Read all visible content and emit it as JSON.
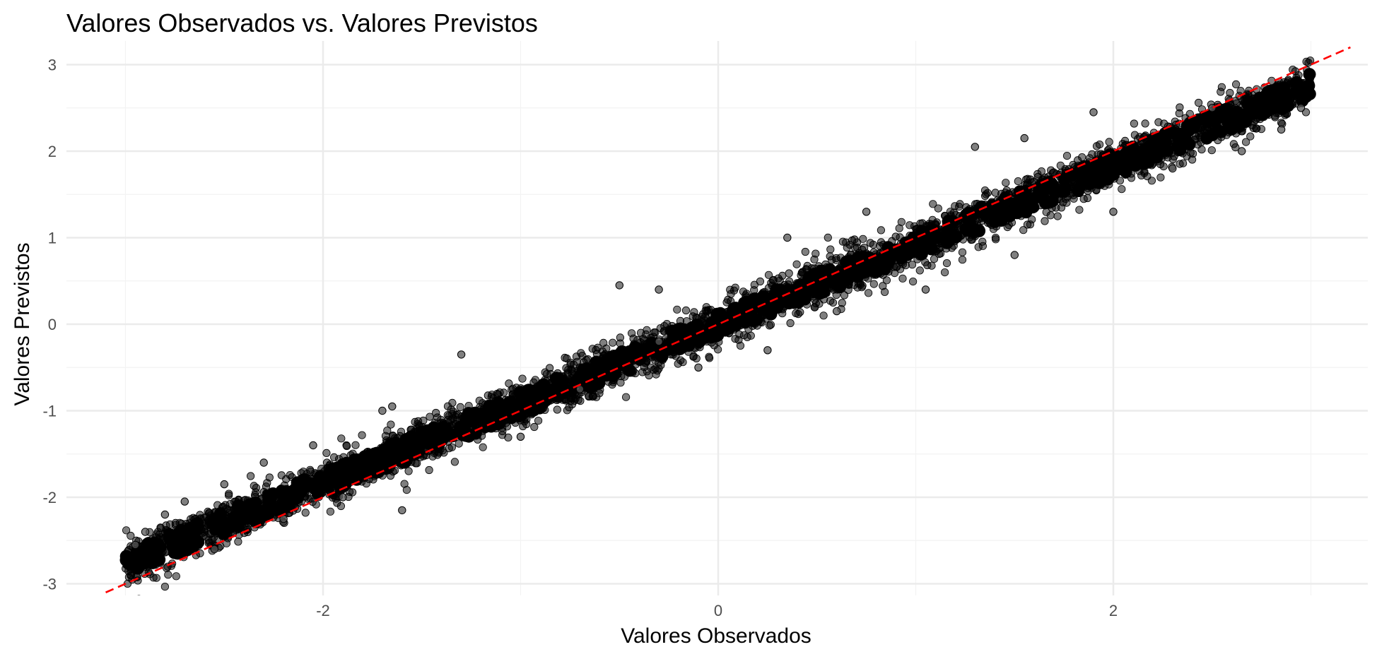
{
  "chart_data": {
    "type": "scatter",
    "title": "Valores Observados vs. Valores Previstos",
    "xlabel": "Valores Observados",
    "ylabel": "Valores Previstos",
    "xlim": [
      -3.1,
      3.3
    ],
    "ylim": [
      -3.1,
      3.2
    ],
    "x_ticks": [
      -2,
      0,
      2
    ],
    "y_ticks": [
      -3,
      -2,
      -1,
      0,
      1,
      2,
      3
    ],
    "x_tick_labels": [
      "-2",
      "0",
      "2"
    ],
    "y_tick_labels": [
      "-3",
      "-2",
      "-1",
      "0",
      "1",
      "2",
      "3"
    ],
    "grid": true,
    "legend": "none",
    "point_color": "#000000",
    "point_alpha": 0.5,
    "point_outline": "#000000",
    "x_range_of_points": [
      -3,
      3
    ],
    "approx_band_halfwidth": 0.25,
    "reference_line": {
      "intercept": 0,
      "slope": 1,
      "style": "dashed",
      "color": "#ff0000",
      "x_from": -3.1,
      "x_to": 3.2
    },
    "outliers": [
      [
        -2.95,
        -2.55
      ],
      [
        -2.9,
        -2.4
      ],
      [
        -2.8,
        -2.2
      ],
      [
        -2.7,
        -2.05
      ],
      [
        -2.5,
        -1.85
      ],
      [
        -2.3,
        -1.6
      ],
      [
        -2.05,
        -1.4
      ],
      [
        -1.7,
        -1.0
      ],
      [
        -1.65,
        -0.95
      ],
      [
        -1.3,
        -0.35
      ],
      [
        -0.5,
        0.45
      ],
      [
        -0.3,
        0.4
      ],
      [
        0.35,
        1.0
      ],
      [
        0.75,
        1.3
      ],
      [
        1.3,
        2.05
      ],
      [
        1.55,
        2.15
      ],
      [
        1.9,
        2.45
      ],
      [
        2.5,
        2.5
      ],
      [
        2.85,
        2.25
      ],
      [
        2.95,
        2.5
      ],
      [
        -2.2,
        -2.25
      ],
      [
        -1.9,
        -2.0
      ],
      [
        -1.6,
        -2.15
      ],
      [
        -1.0,
        -1.3
      ],
      [
        -0.7,
        -0.75
      ],
      [
        -0.1,
        -0.5
      ],
      [
        0.25,
        -0.3
      ],
      [
        0.6,
        0.15
      ],
      [
        1.05,
        0.4
      ],
      [
        1.5,
        0.8
      ],
      [
        2.0,
        1.3
      ],
      [
        2.3,
        1.8
      ],
      [
        2.65,
        2.0
      ],
      [
        -2.55,
        -2.6
      ],
      [
        -0.3,
        -0.2
      ]
    ]
  }
}
